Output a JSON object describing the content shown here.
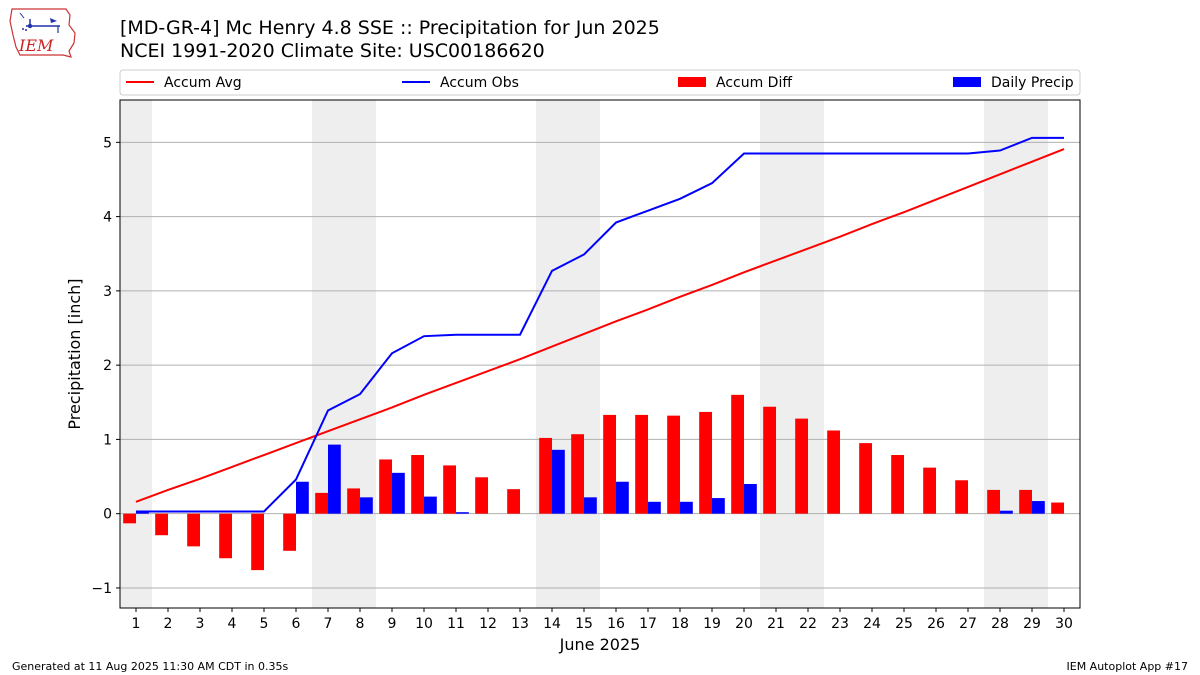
{
  "title": "[MD-GR-4] Mc Henry 4.8 SSE :: Precipitation for Jun 2025",
  "subtitle": "NCEI 1991-2020 Climate Site: USC00186620",
  "logo_text": "IEM",
  "footer_left": "Generated at 11 Aug 2025 11:30 AM CDT in 0.35s",
  "footer_right": "IEM Autoplot App #17",
  "colors": {
    "accum_avg": "#ff0000",
    "accum_obs": "#0000ff",
    "accum_diff": "#ff0000",
    "daily_precip": "#0000ff",
    "weekend_shade": "#eeeeee",
    "grid": "#b0b0b0"
  },
  "chart_data": {
    "type": "bar",
    "xlabel": "June 2025",
    "ylabel": "Precipitation [inch]",
    "ylim": [
      -1.27,
      5.57
    ],
    "yticks": [
      -1,
      0,
      1,
      2,
      3,
      4,
      5
    ],
    "x": [
      1,
      2,
      3,
      4,
      5,
      6,
      7,
      8,
      9,
      10,
      11,
      12,
      13,
      14,
      15,
      16,
      17,
      18,
      19,
      20,
      21,
      22,
      23,
      24,
      25,
      26,
      27,
      28,
      29,
      30
    ],
    "grid": "horizontal",
    "legend_position": "top",
    "shaded_weekend_days": [
      1,
      7,
      8,
      14,
      15,
      21,
      22,
      28,
      29
    ],
    "series": [
      {
        "name": "Accum Avg",
        "kind": "line",
        "values": [
          0.16,
          0.32,
          0.47,
          0.63,
          0.79,
          0.95,
          1.11,
          1.27,
          1.43,
          1.6,
          1.76,
          1.92,
          2.08,
          2.25,
          2.42,
          2.59,
          2.75,
          2.92,
          3.08,
          3.25,
          3.41,
          3.57,
          3.73,
          3.9,
          4.06,
          4.23,
          4.4,
          4.57,
          4.74,
          4.91
        ]
      },
      {
        "name": "Accum Obs",
        "kind": "line",
        "values": [
          0.03,
          0.03,
          0.03,
          0.03,
          0.03,
          0.46,
          1.39,
          1.61,
          2.16,
          2.39,
          2.41,
          2.41,
          2.41,
          3.27,
          3.49,
          3.92,
          4.08,
          4.24,
          4.45,
          4.85,
          4.85,
          4.85,
          4.85,
          4.85,
          4.85,
          4.85,
          4.85,
          4.89,
          5.06,
          5.06
        ]
      },
      {
        "name": "Accum Diff",
        "kind": "bar",
        "values": [
          -0.13,
          -0.29,
          -0.44,
          -0.6,
          -0.76,
          -0.5,
          0.28,
          0.34,
          0.73,
          0.79,
          0.65,
          0.49,
          0.33,
          1.02,
          1.07,
          1.33,
          1.33,
          1.32,
          1.37,
          1.6,
          1.44,
          1.28,
          1.12,
          0.95,
          0.79,
          0.62,
          0.45,
          0.32,
          0.32,
          0.15
        ]
      },
      {
        "name": "Daily Precip",
        "kind": "bar",
        "values": [
          0.03,
          0,
          0,
          0,
          0,
          0.43,
          0.93,
          0.22,
          0.55,
          0.23,
          0.02,
          0,
          0,
          0.86,
          0.22,
          0.43,
          0.16,
          0.16,
          0.21,
          0.4,
          0,
          0,
          0,
          0,
          0,
          0,
          0,
          0.04,
          0.17,
          0
        ]
      }
    ]
  }
}
